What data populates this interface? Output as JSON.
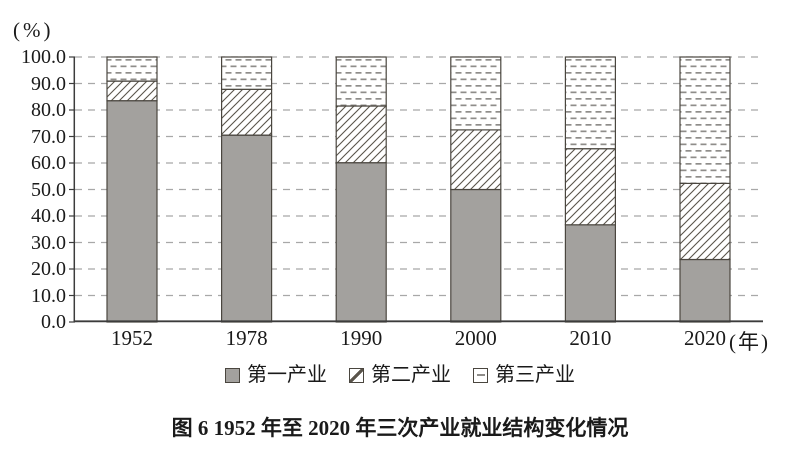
{
  "figure": {
    "y_axis_unit": "(%)",
    "x_axis_unit": "(年)",
    "caption": "图 6  1952 年至 2020 年三次产业就业结构变化情况"
  },
  "legend": {
    "items": [
      {
        "label": "第一产业",
        "swatch": "solid-gray-square"
      },
      {
        "label": "第二产业",
        "swatch": "diagonal-hatch-square"
      },
      {
        "label": "第三产业",
        "swatch": "horizontal-dash-square"
      }
    ]
  },
  "chart_data": {
    "type": "bar",
    "stacked": true,
    "title": "图 6  1952 年至 2020 年三次产业就业结构变化情况",
    "categories": [
      "1952",
      "1978",
      "1990",
      "2000",
      "2010",
      "2020"
    ],
    "series": [
      {
        "name": "第一产业",
        "style": "solid-gray",
        "values": [
          83.5,
          70.5,
          60.1,
          50.0,
          36.7,
          23.6
        ]
      },
      {
        "name": "第二产业",
        "style": "diagonal-hatch",
        "values": [
          7.4,
          17.3,
          21.4,
          22.5,
          28.7,
          28.7
        ]
      },
      {
        "name": "第三产业",
        "style": "horizontal-dash",
        "values": [
          9.1,
          12.2,
          18.5,
          27.5,
          34.6,
          47.7
        ]
      }
    ],
    "xlabel": "(年)",
    "ylabel": "(%)",
    "ylim": [
      0,
      100
    ],
    "yticks": [
      "100.0",
      "90.0",
      "80.0",
      "70.0",
      "60.0",
      "50.0",
      "40.0",
      "30.0",
      "20.0",
      "10.0",
      "0.0"
    ],
    "grid": true,
    "grid_style": "dashed-horizontal",
    "legend_position": "bottom",
    "colors": {
      "bar_fill": "#a3a19e",
      "bar_border": "#4a463f",
      "hatch_line": "#5a544b",
      "dash_line": "#8f8d8a",
      "gridline": "#a8a8a8",
      "axis": "#3c3c3c",
      "text": "#1a1a1a"
    }
  }
}
